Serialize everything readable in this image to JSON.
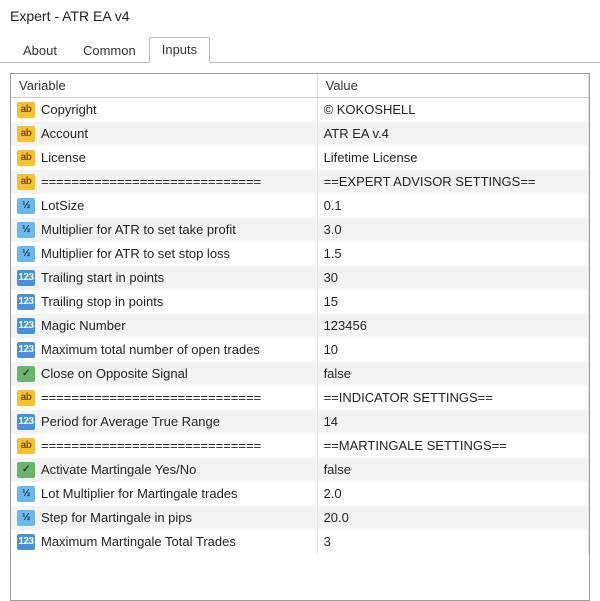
{
  "window": {
    "title": "Expert - ATR EA v4"
  },
  "tabs": [
    {
      "label": "About",
      "active": false
    },
    {
      "label": "Common",
      "active": false
    },
    {
      "label": "Inputs",
      "active": true
    }
  ],
  "columns": {
    "variable": "Variable",
    "value": "Value"
  },
  "iconGlyph": {
    "string": "ab",
    "double": "½",
    "int": "123",
    "bool": "✓"
  },
  "rows": [
    {
      "type": "string",
      "variable": "Copyright",
      "value": "© KOKOSHELL"
    },
    {
      "type": "string",
      "variable": "Account",
      "value": "ATR EA v.4"
    },
    {
      "type": "string",
      "variable": "License",
      "value": "Lifetime License"
    },
    {
      "type": "string",
      "variable": "=============================",
      "value": "==EXPERT ADVISOR SETTINGS=="
    },
    {
      "type": "double",
      "variable": "LotSize",
      "value": "0.1"
    },
    {
      "type": "double",
      "variable": "Multiplier for ATR to set take profit",
      "value": "3.0"
    },
    {
      "type": "double",
      "variable": "Multiplier for ATR to set stop loss",
      "value": "1.5"
    },
    {
      "type": "int",
      "variable": "Trailing start in points",
      "value": "30"
    },
    {
      "type": "int",
      "variable": "Trailing stop in points",
      "value": "15"
    },
    {
      "type": "int",
      "variable": "Magic Number",
      "value": "123456"
    },
    {
      "type": "int",
      "variable": "Maximum total number of open trades",
      "value": "10"
    },
    {
      "type": "bool",
      "variable": "Close on Opposite Signal",
      "value": "false"
    },
    {
      "type": "string",
      "variable": "=============================",
      "value": "==INDICATOR SETTINGS=="
    },
    {
      "type": "int",
      "variable": "Period for Average True Range",
      "value": "14"
    },
    {
      "type": "string",
      "variable": "=============================",
      "value": "==MARTINGALE SETTINGS=="
    },
    {
      "type": "bool",
      "variable": "Activate Martingale Yes/No",
      "value": "false"
    },
    {
      "type": "double",
      "variable": "Lot Multiplier for Martingale trades",
      "value": "2.0"
    },
    {
      "type": "double",
      "variable": "Step for Martingale in pips",
      "value": "20.0"
    },
    {
      "type": "int",
      "variable": "Maximum Martingale Total Trades",
      "value": "3"
    }
  ]
}
